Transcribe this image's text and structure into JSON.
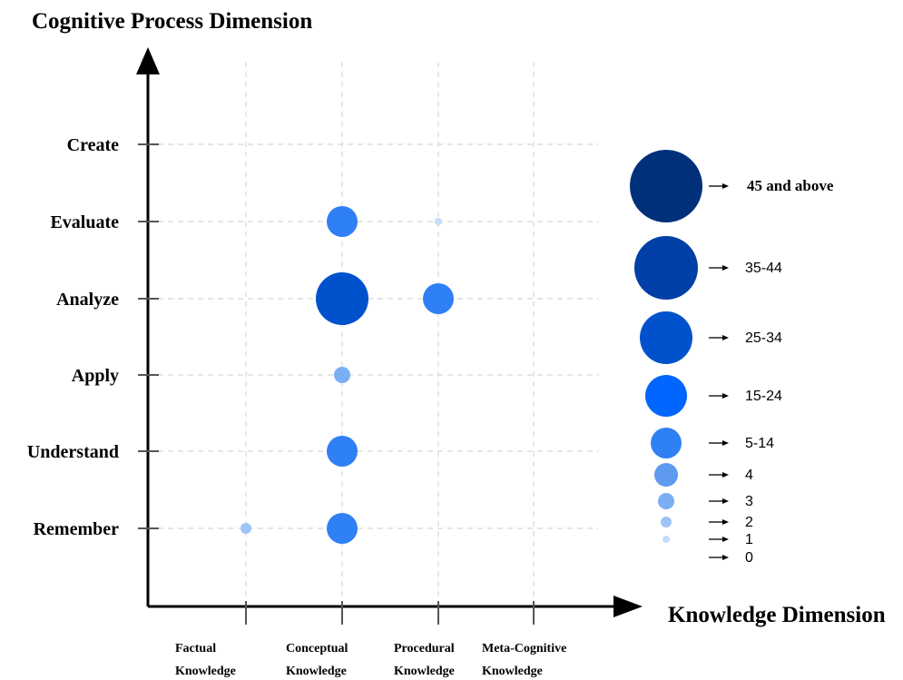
{
  "chart_data": {
    "type": "scatter",
    "title": "Cognitive Process Dimension",
    "xlabel": "Knowledge Dimension",
    "ylabel": "Cognitive Process Dimension",
    "x_categories": [
      [
        "Factual",
        "Knowledge"
      ],
      [
        "Conceptual",
        "Knowledge"
      ],
      [
        "Procedural",
        "Knowledge"
      ],
      [
        "Meta-Cognitive",
        "Knowledge"
      ]
    ],
    "y_categories": [
      "Remember",
      "Understand",
      "Apply",
      "Analyze",
      "Evaluate",
      "Create"
    ],
    "grid": true,
    "points": [
      {
        "x": "Factual",
        "y": "Remember",
        "size_class": "2"
      },
      {
        "x": "Conceptual",
        "y": "Remember",
        "size_class": "5-14"
      },
      {
        "x": "Conceptual",
        "y": "Understand",
        "size_class": "5-14"
      },
      {
        "x": "Conceptual",
        "y": "Apply",
        "size_class": "3"
      },
      {
        "x": "Conceptual",
        "y": "Analyze",
        "size_class": "25-34"
      },
      {
        "x": "Conceptual",
        "y": "Evaluate",
        "size_class": "5-14"
      },
      {
        "x": "Procedural",
        "y": "Analyze",
        "size_class": "5-14"
      },
      {
        "x": "Procedural",
        "y": "Evaluate",
        "size_class": "1"
      }
    ],
    "legend": {
      "placement": "right",
      "entries": [
        {
          "label": "45 and above",
          "color": "#00307a",
          "bold": true
        },
        {
          "label": "35-44",
          "color": "#003fa6",
          "bold": false
        },
        {
          "label": "25-34",
          "color": "#0052cc",
          "bold": false
        },
        {
          "label": "15-24",
          "color": "#0066ff",
          "bold": false
        },
        {
          "label": "5-14",
          "color": "#2f7ff5",
          "bold": false
        },
        {
          "label": "4",
          "color": "#5d9af0",
          "bold": false
        },
        {
          "label": "3",
          "color": "#7aaef5",
          "bold": false
        },
        {
          "label": "2",
          "color": "#9dc3f8",
          "bold": false
        },
        {
          "label": "1",
          "color": "#c6dcfb",
          "bold": false
        },
        {
          "label": "0",
          "color": "#ffffff",
          "bold": false
        }
      ]
    }
  }
}
